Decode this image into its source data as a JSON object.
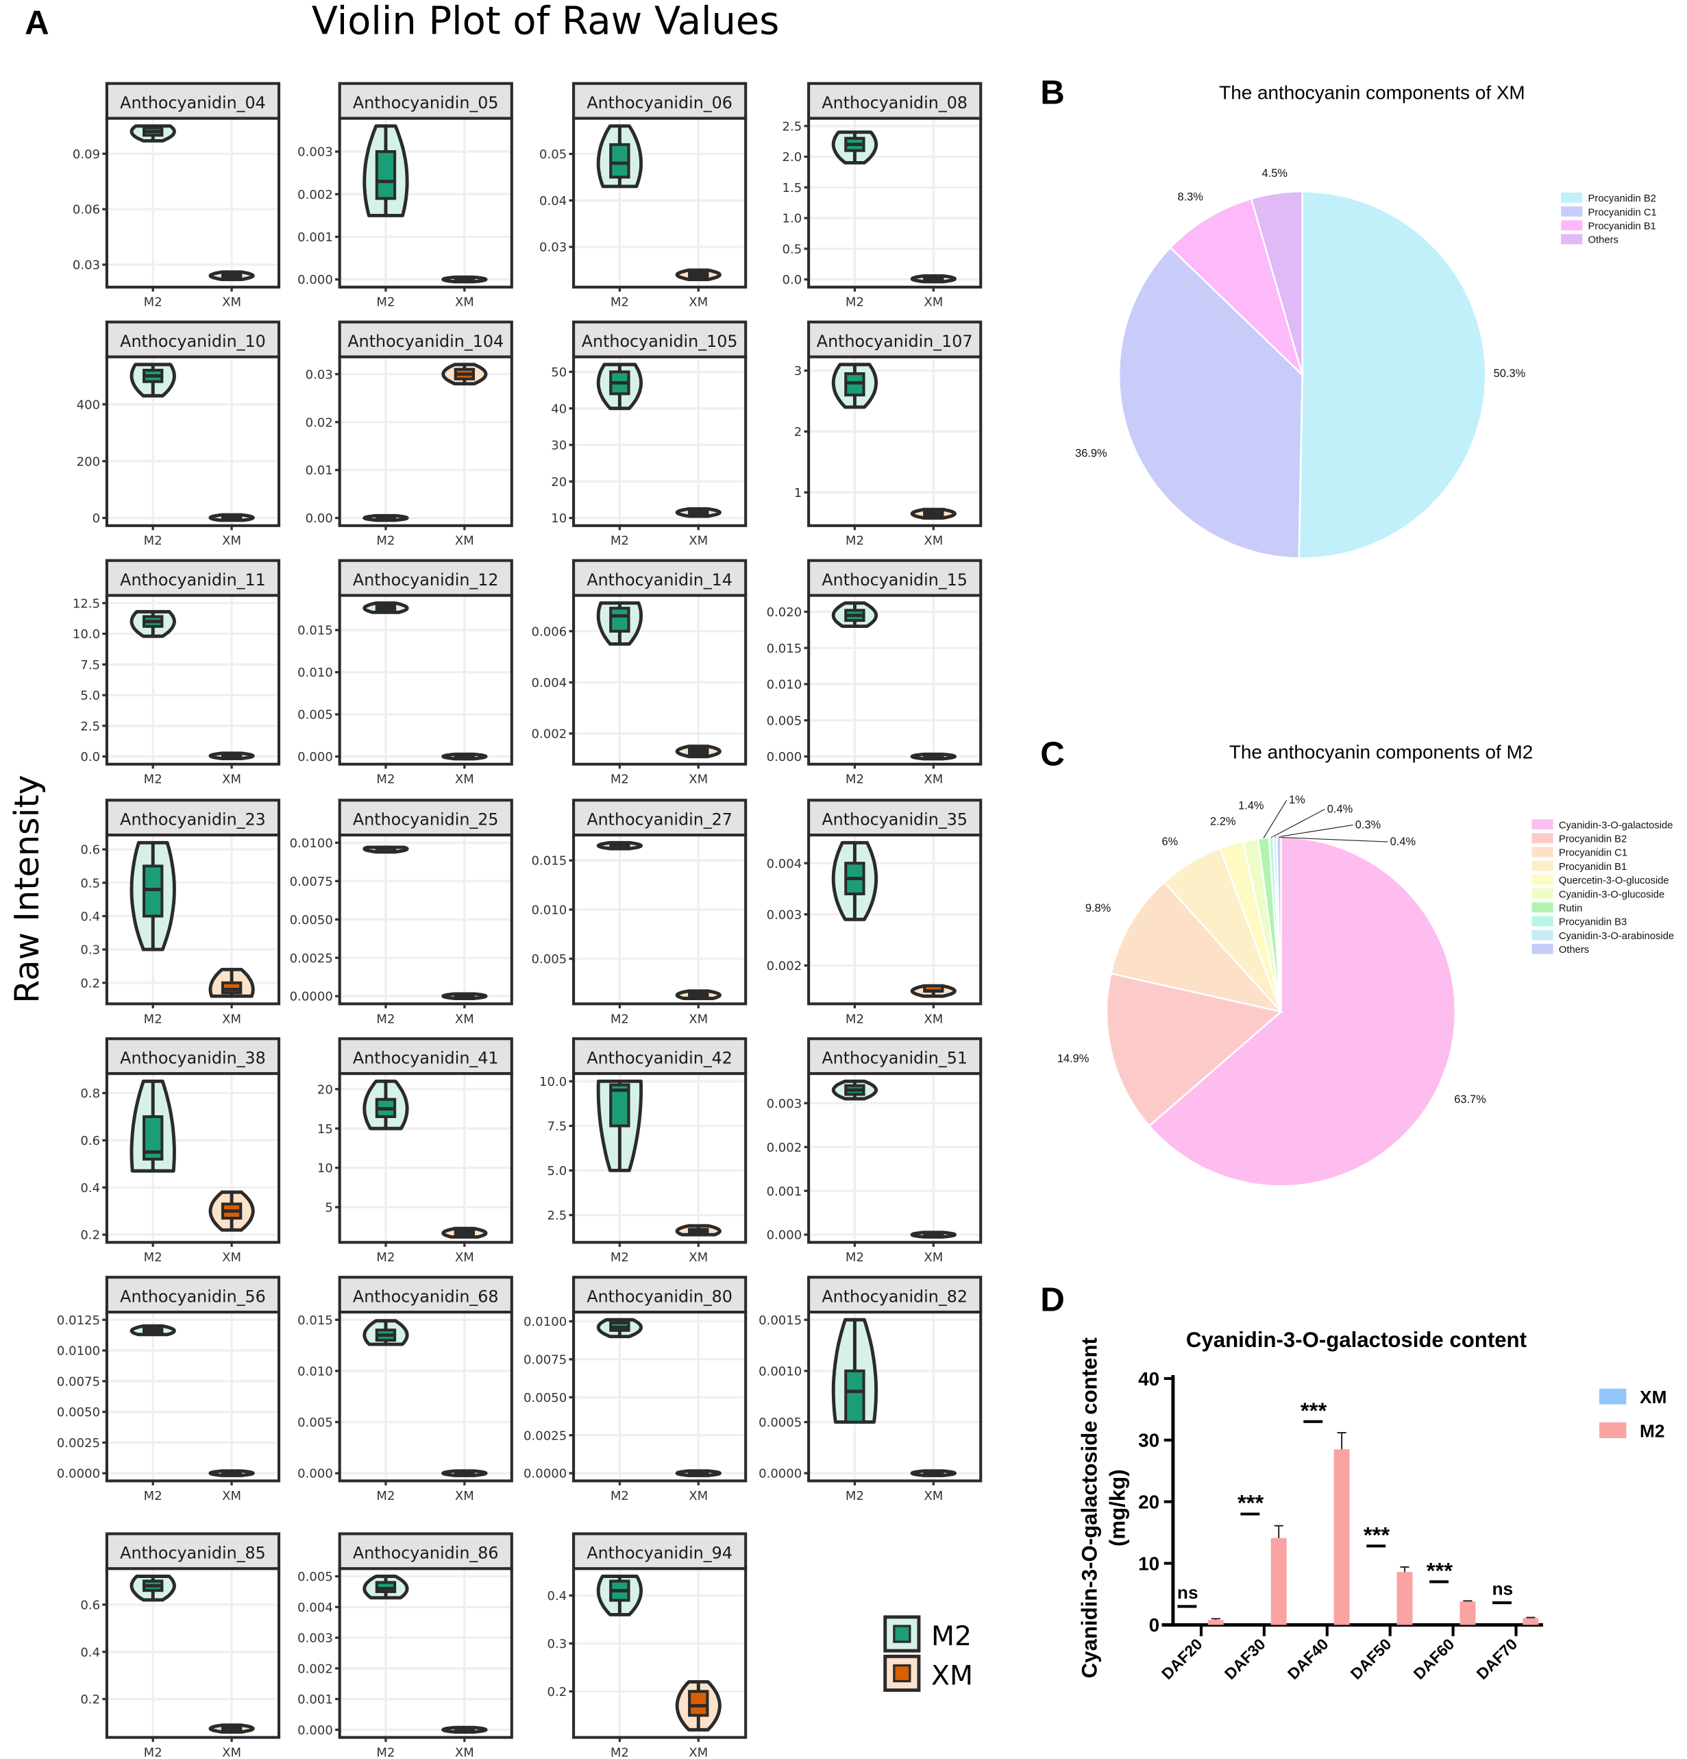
{
  "figure": {
    "label_a": "A",
    "label_b": "B",
    "label_c": "C",
    "label_d": "D",
    "title_a": "Violin Plot of Raw Values",
    "ylabel_a": "Raw Intensity",
    "legend_a": [
      "M2",
      "XM"
    ]
  },
  "colors": {
    "m2_fill": "#d6f2e8",
    "m2_box": "#1b9e77",
    "xm_fill": "#fde2cb",
    "xm_box": "#d95f02",
    "outline": "#2b2b2b",
    "strip": "#e3e3e3"
  },
  "chart_data": [
    {
      "type": "violin",
      "title": "Violin Plot of Raw Values",
      "ylabel": "Raw Intensity",
      "groups": [
        "M2",
        "XM"
      ],
      "panels": [
        {
          "name": "Anthocyanidin_04",
          "ticks": [
            "0.03",
            "0.06",
            "0.09"
          ],
          "M2": [
            0.097,
            0.1,
            0.102,
            0.104,
            0.105
          ],
          "XM": [
            0.022,
            0.023,
            0.024,
            0.025,
            0.026
          ]
        },
        {
          "name": "Anthocyanidin_05",
          "ticks": [
            "0.000",
            "0.001",
            "0.002",
            "0.003"
          ],
          "M2": [
            0.0015,
            0.0019,
            0.0023,
            0.003,
            0.0036
          ],
          "XM": [
            0,
            0,
            0,
            0,
            0
          ]
        },
        {
          "name": "Anthocyanidin_06",
          "ticks": [
            "0.03",
            "0.04",
            "0.05"
          ],
          "M2": [
            0.043,
            0.045,
            0.048,
            0.052,
            0.056
          ],
          "XM": [
            0.023,
            0.0235,
            0.024,
            0.0245,
            0.025
          ]
        },
        {
          "name": "Anthocyanidin_08",
          "ticks": [
            "0.0",
            "0.5",
            "1.0",
            "1.5",
            "2.0",
            "2.5"
          ],
          "M2": [
            1.9,
            2.1,
            2.2,
            2.3,
            2.4
          ],
          "XM": [
            0,
            0,
            0.01,
            0.01,
            0.02
          ]
        },
        {
          "name": "Anthocyanidin_10",
          "ticks": [
            "0",
            "200",
            "400"
          ],
          "M2": [
            430,
            480,
            500,
            520,
            540
          ],
          "XM": [
            0,
            0,
            1,
            2,
            3
          ]
        },
        {
          "name": "Anthocyanidin_104",
          "ticks": [
            "0.00",
            "0.01",
            "0.02",
            "0.03"
          ],
          "M2": [
            0,
            0,
            0,
            0,
            0
          ],
          "XM": [
            0.028,
            0.029,
            0.03,
            0.031,
            0.032
          ]
        },
        {
          "name": "Anthocyanidin_105",
          "ticks": [
            "10",
            "20",
            "30",
            "40",
            "50"
          ],
          "M2": [
            40,
            44,
            47,
            50,
            52
          ],
          "XM": [
            10.5,
            11,
            11.5,
            12,
            12.5
          ]
        },
        {
          "name": "Anthocyanidin_107",
          "ticks": [
            "1",
            "2",
            "3"
          ],
          "M2": [
            2.4,
            2.6,
            2.8,
            2.95,
            3.1
          ],
          "XM": [
            0.58,
            0.62,
            0.65,
            0.68,
            0.72
          ]
        },
        {
          "name": "Anthocyanidin_11",
          "ticks": [
            "0.0",
            "2.5",
            "5.0",
            "7.5",
            "10.0",
            "12.5"
          ],
          "M2": [
            9.8,
            10.6,
            11,
            11.4,
            11.8
          ],
          "XM": [
            0.02,
            0.04,
            0.05,
            0.06,
            0.08
          ]
        },
        {
          "name": "Anthocyanidin_12",
          "ticks": [
            "0.000",
            "0.005",
            "0.010",
            "0.015"
          ],
          "M2": [
            0.0171,
            0.0174,
            0.0176,
            0.0179,
            0.0182
          ],
          "XM": [
            0,
            0,
            0,
            0,
            0
          ]
        },
        {
          "name": "Anthocyanidin_14",
          "ticks": [
            "0.002",
            "0.004",
            "0.006"
          ],
          "M2": [
            0.0055,
            0.006,
            0.0066,
            0.0069,
            0.0071
          ],
          "XM": [
            0.0011,
            0.0012,
            0.0013,
            0.0014,
            0.0015
          ]
        },
        {
          "name": "Anthocyanidin_15",
          "ticks": [
            "0.000",
            "0.005",
            "0.010",
            "0.015",
            "0.020"
          ],
          "M2": [
            0.018,
            0.0188,
            0.0195,
            0.0202,
            0.0212
          ],
          "XM": [
            0,
            0,
            0,
            0,
            0
          ]
        },
        {
          "name": "Anthocyanidin_23",
          "ticks": [
            "0.2",
            "0.3",
            "0.4",
            "0.5",
            "0.6"
          ],
          "M2": [
            0.3,
            0.4,
            0.48,
            0.55,
            0.62
          ],
          "XM": [
            0.16,
            0.17,
            0.18,
            0.2,
            0.24
          ]
        },
        {
          "name": "Anthocyanidin_25",
          "ticks": [
            "0.0000",
            "0.0025",
            "0.0050",
            "0.0075",
            "0.0100"
          ],
          "M2": [
            0.0094,
            0.0095,
            0.0096,
            0.0096,
            0.0097
          ],
          "XM": [
            0,
            0,
            0,
            0,
            0
          ]
        },
        {
          "name": "Anthocyanidin_27",
          "ticks": [
            "0.005",
            "0.010",
            "0.015"
          ],
          "M2": [
            0.0162,
            0.0164,
            0.0165,
            0.0166,
            0.0168
          ],
          "XM": [
            0.0012,
            0.0013,
            0.0013,
            0.0014,
            0.0015
          ]
        },
        {
          "name": "Anthocyanidin_35",
          "ticks": [
            "0.002",
            "0.003",
            "0.004"
          ],
          "M2": [
            0.0029,
            0.0034,
            0.0037,
            0.004,
            0.0044
          ],
          "XM": [
            0.0014,
            0.0015,
            0.0015,
            0.0016,
            0.0016
          ]
        },
        {
          "name": "Anthocyanidin_38",
          "ticks": [
            "0.2",
            "0.4",
            "0.6",
            "0.8"
          ],
          "M2": [
            0.47,
            0.52,
            0.55,
            0.7,
            0.85
          ],
          "XM": [
            0.22,
            0.27,
            0.3,
            0.33,
            0.38
          ]
        },
        {
          "name": "Anthocyanidin_41",
          "ticks": [
            "5",
            "10",
            "15",
            "20"
          ],
          "M2": [
            15,
            16.5,
            17.5,
            18.7,
            21
          ],
          "XM": [
            1.5,
            1.6,
            1.7,
            1.8,
            2
          ]
        },
        {
          "name": "Anthocyanidin_42",
          "ticks": [
            "2.5",
            "5.0",
            "7.5",
            "10.0"
          ],
          "M2": [
            5,
            7.5,
            9.5,
            9.8,
            10
          ],
          "XM": [
            1.4,
            1.5,
            1.6,
            1.7,
            1.9
          ]
        },
        {
          "name": "Anthocyanidin_51",
          "ticks": [
            "0.000",
            "0.001",
            "0.002",
            "0.003"
          ],
          "M2": [
            0.0031,
            0.0032,
            0.0033,
            0.0034,
            0.0035
          ],
          "XM": [
            0,
            0,
            0,
            0,
            0
          ]
        },
        {
          "name": "Anthocyanidin_56",
          "ticks": [
            "0.0000",
            "0.0025",
            "0.0050",
            "0.0075",
            "0.0100",
            "0.0125"
          ],
          "M2": [
            0.0113,
            0.0115,
            0.0116,
            0.0118,
            0.012
          ],
          "XM": [
            0,
            0,
            0,
            0,
            0
          ]
        },
        {
          "name": "Anthocyanidin_68",
          "ticks": [
            "0.000",
            "0.005",
            "0.010",
            "0.015"
          ],
          "M2": [
            0.0126,
            0.013,
            0.0135,
            0.014,
            0.0149
          ],
          "XM": [
            0,
            0,
            0,
            0,
            0
          ]
        },
        {
          "name": "Anthocyanidin_80",
          "ticks": [
            "0.0000",
            "0.0025",
            "0.0050",
            "0.0075",
            "0.0100"
          ],
          "M2": [
            0.009,
            0.0094,
            0.0096,
            0.0099,
            0.0101
          ],
          "XM": [
            0,
            0,
            0,
            0,
            0
          ]
        },
        {
          "name": "Anthocyanidin_82",
          "ticks": [
            "0.0000",
            "0.0005",
            "0.0010",
            "0.0015"
          ],
          "M2": [
            0.0005,
            0.0005,
            0.0008,
            0.001,
            0.0015
          ],
          "XM": [
            0,
            0,
            0,
            0,
            0
          ]
        },
        {
          "name": "Anthocyanidin_85",
          "ticks": [
            "0.2",
            "0.4",
            "0.6"
          ],
          "M2": [
            0.62,
            0.66,
            0.68,
            0.7,
            0.72
          ],
          "XM": [
            0.07,
            0.073,
            0.075,
            0.077,
            0.08
          ]
        },
        {
          "name": "Anthocyanidin_86",
          "ticks": [
            "0.000",
            "0.001",
            "0.002",
            "0.003",
            "0.004",
            "0.005"
          ],
          "M2": [
            0.0043,
            0.0045,
            0.0046,
            0.0048,
            0.005
          ],
          "XM": [
            0,
            0,
            0,
            0,
            0
          ]
        },
        {
          "name": "Anthocyanidin_94",
          "ticks": [
            "0.2",
            "0.3",
            "0.4"
          ],
          "M2": [
            0.36,
            0.39,
            0.41,
            0.43,
            0.44
          ],
          "XM": [
            0.12,
            0.15,
            0.17,
            0.2,
            0.22
          ]
        }
      ]
    },
    {
      "type": "pie",
      "title": "The anthocyanin components of XM",
      "slices": [
        {
          "label": "Procyanidin B2",
          "value": 50.3,
          "text": "50.3%",
          "color": "#c2f0fa"
        },
        {
          "label": "Procyanidin C1",
          "value": 36.9,
          "text": "36.9%",
          "color": "#c9ccf9"
        },
        {
          "label": "Procyanidin B1",
          "value": 8.3,
          "text": "8.3%",
          "color": "#fdb9f9"
        },
        {
          "label": "Others",
          "value": 4.5,
          "text": "4.5%",
          "color": "#e0b9f7"
        }
      ],
      "legend": "right"
    },
    {
      "type": "pie",
      "title": "The anthocyanin components of M2",
      "slices": [
        {
          "label": "Cyanidin-3-O-galactoside",
          "value": 63.7,
          "text": "63.7%",
          "color": "#fdbdee"
        },
        {
          "label": "Procyanidin B2",
          "value": 14.9,
          "text": "14.9%",
          "color": "#fdcaca"
        },
        {
          "label": "Procyanidin C1",
          "value": 9.8,
          "text": "9.8%",
          "color": "#fde0c8"
        },
        {
          "label": "Procyanidin B1",
          "value": 6,
          "text": "6%",
          "color": "#fdf0c8"
        },
        {
          "label": "Quercetin-3-O-glucoside",
          "value": 2.2,
          "text": "2.2%",
          "color": "#fdfac2"
        },
        {
          "label": "Cyanidin-3-O-glucoside",
          "value": 1.4,
          "text": "1.4%",
          "color": "#eefcc8"
        },
        {
          "label": "Rutin",
          "value": 1,
          "text": "1%",
          "color": "#b0f4b0"
        },
        {
          "label": "Procyanidin B3",
          "value": 0.4,
          "text": "0.4%",
          "color": "#b8f6e6"
        },
        {
          "label": "Cyanidin-3-O-arabinoside",
          "value": 0.3,
          "text": "0.3%",
          "color": "#c6ecf8"
        },
        {
          "label": "Others",
          "value": 0.4,
          "text": "0.4%",
          "color": "#c4cdf7"
        }
      ],
      "legend": "right"
    },
    {
      "type": "bar",
      "title": "Cyanidin-3-O-galactoside content",
      "ylabel": "Cyanidin-3-O-galactoside content",
      "ylabel_unit": "(mg/kg)",
      "categories": [
        "DAF20",
        "DAF30",
        "DAF40",
        "DAF50",
        "DAF60",
        "DAF70"
      ],
      "yticks": [
        "0",
        "10",
        "20",
        "30",
        "40"
      ],
      "ylim": [
        0,
        40
      ],
      "series": [
        {
          "name": "XM",
          "color": "#92c5f9",
          "values": [
            0,
            0,
            0,
            0,
            0,
            0
          ]
        },
        {
          "name": "M2",
          "color": "#f9a3a3",
          "values": [
            0.8,
            14.1,
            28.5,
            8.6,
            3.8,
            1.1
          ],
          "errors": [
            0.2,
            2.0,
            2.7,
            0.8,
            0.1,
            0.1
          ]
        }
      ],
      "significance": [
        {
          "text": "ns",
          "y": 3.0
        },
        {
          "text": "***",
          "y": 18.0
        },
        {
          "text": "***",
          "y": 33.0
        },
        {
          "text": "***",
          "y": 12.8
        },
        {
          "text": "***",
          "y": 7.0
        },
        {
          "text": "ns",
          "y": 3.6
        }
      ],
      "legend": "top-right"
    }
  ]
}
